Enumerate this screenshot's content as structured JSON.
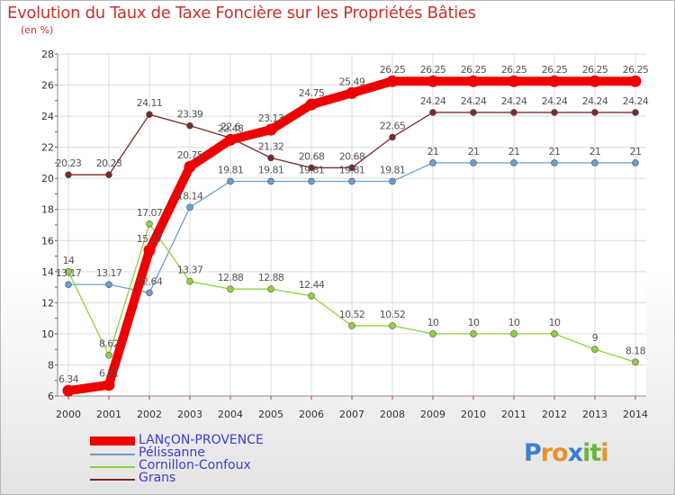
{
  "header": {
    "title": "Evolution du Taux de Taxe Foncière sur les Propriétés Bâties",
    "unit": "(en %)"
  },
  "brand": {
    "logo_letters": [
      "P",
      "r",
      "o",
      "x",
      "i",
      "t",
      "i"
    ],
    "logo_colors": [
      "#3f7fcf",
      "#e8912d",
      "#e8912d",
      "#3f7fcf",
      "#6bb53c",
      "#6bb53c",
      "#e8912d"
    ]
  },
  "chart_data": {
    "type": "line",
    "title": "Evolution du Taux de Taxe Foncière sur les Propriétés Bâties",
    "ylabel": "(en %)",
    "xlabel": "",
    "ylim": [
      6,
      28
    ],
    "yticks": [
      "6",
      "8",
      "10",
      "12",
      "14",
      "16",
      "18",
      "20",
      "22",
      "24",
      "26",
      "28"
    ],
    "categories": [
      "2000",
      "2001",
      "2002",
      "2003",
      "2004",
      "2005",
      "2006",
      "2007",
      "2008",
      "2009",
      "2010",
      "2011",
      "2012",
      "2013",
      "2014"
    ],
    "grid": true,
    "legend_position": "bottom-left",
    "series": [
      {
        "name": "LANçON-PROVENCE",
        "color": "#ee0000",
        "values": [
          6.34,
          6.71,
          15.37,
          20.75,
          22.48,
          23.13,
          24.75,
          25.49,
          26.25,
          26.25,
          26.25,
          26.25,
          26.25,
          26.25,
          26.25
        ],
        "labels": [
          "6.34",
          "6.71",
          "15.37",
          "20.75",
          "22.48",
          "23.13",
          "24.75",
          "25.49",
          "26.25",
          "26.25",
          "26.25",
          "26.25",
          "26.25",
          "26.25",
          "26.25"
        ]
      },
      {
        "name": "Pélissanne",
        "color": "#6a9fd0",
        "values": [
          13.17,
          13.17,
          12.64,
          18.14,
          19.81,
          19.81,
          19.81,
          19.81,
          19.81,
          21,
          21,
          21,
          21,
          21,
          21
        ],
        "labels": [
          "13.17",
          "13.17",
          "12.64",
          "18.14",
          "19.81",
          "19.81",
          "19.81",
          "19.81",
          "19.81",
          "21",
          "21",
          "21",
          "21",
          "21",
          "21"
        ]
      },
      {
        "name": "Cornillon-Confoux",
        "color": "#8fd23a",
        "values": [
          14,
          8.62,
          17.07,
          13.37,
          12.88,
          12.88,
          12.44,
          10.52,
          10.52,
          10,
          10,
          10,
          10,
          9,
          8.18
        ],
        "labels": [
          "14",
          "8.62",
          "17.07",
          "13.37",
          "12.88",
          "12.88",
          "12.44",
          "10.52",
          "10.52",
          "10",
          "10",
          "10",
          "10",
          "9",
          "8.18"
        ]
      },
      {
        "name": "Grans",
        "color": "#7a2a2a",
        "values": [
          20.23,
          20.23,
          24.11,
          23.39,
          22.6,
          21.32,
          20.68,
          20.68,
          22.65,
          24.24,
          24.24,
          24.24,
          24.24,
          24.24,
          24.24
        ],
        "labels": [
          "20.23",
          "20.23",
          "24.11",
          "23.39",
          "22.6",
          "21.32",
          "20.68",
          "20.68",
          "22.65",
          "24.24",
          "24.24",
          "24.24",
          "24.24",
          "24.24",
          "24.24"
        ]
      }
    ]
  }
}
